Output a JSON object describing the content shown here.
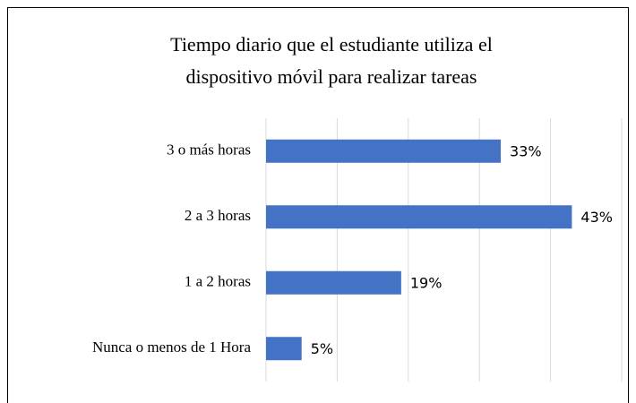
{
  "chart_data": {
    "type": "bar",
    "orientation": "horizontal",
    "title": [
      "Tiempo diario que el estudiante utiliza el",
      "dispositivo móvil para realizar tareas"
    ],
    "categories": [
      "3 o más horas",
      "2 a 3 horas",
      "1 a 2 horas",
      "Nunca o menos de 1 Hora"
    ],
    "values": [
      33,
      43,
      19,
      5
    ],
    "value_labels": [
      "33%",
      "43%",
      "19%",
      "5%"
    ],
    "color": "#4472c4",
    "xlim": [
      0,
      50
    ],
    "xticks": [
      0,
      10,
      20,
      30,
      40,
      50
    ],
    "grid": true
  }
}
